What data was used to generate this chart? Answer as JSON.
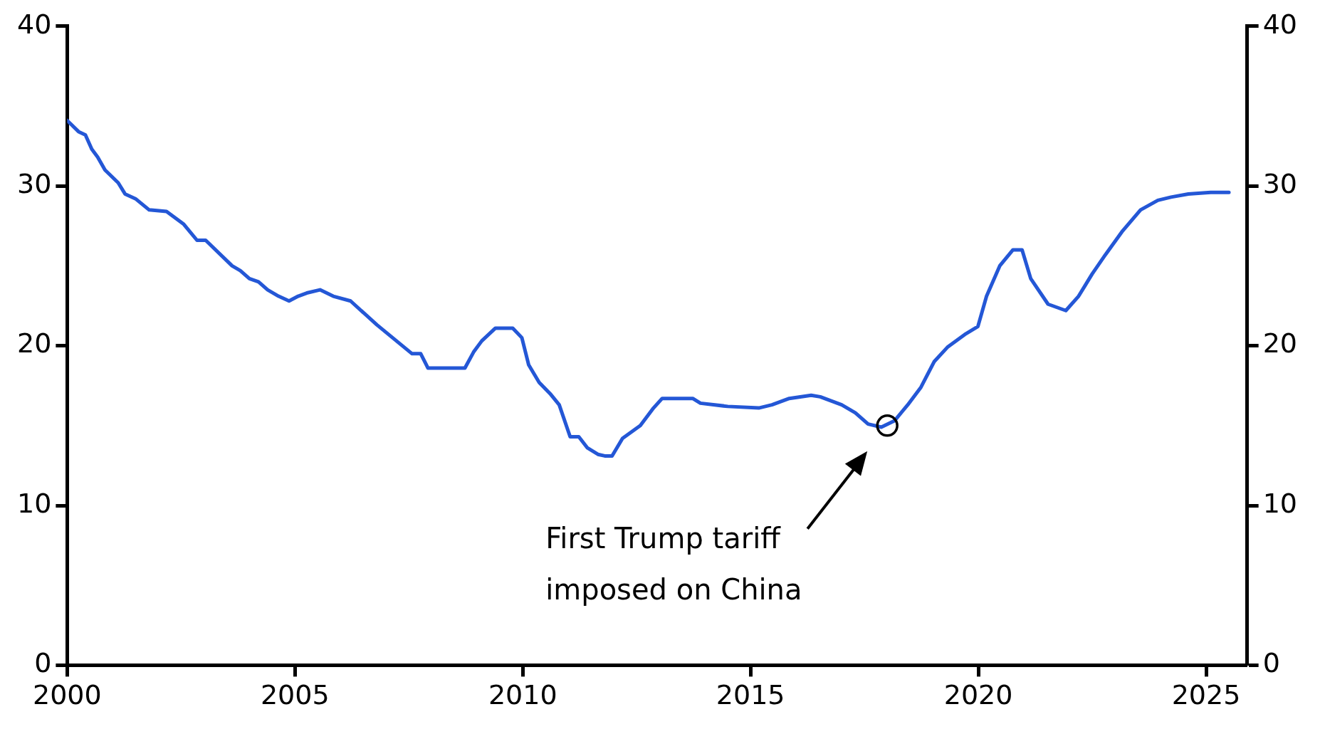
{
  "chart_data": {
    "type": "line",
    "x": [
      2000,
      2000.25,
      2000.4,
      2000.54,
      2000.67,
      2000.83,
      2001.12,
      2001.27,
      2001.5,
      2001.8,
      2002.18,
      2002.56,
      2002.85,
      2003.04,
      2003.62,
      2003.8,
      2004.0,
      2004.2,
      2004.4,
      2004.64,
      2004.87,
      2005.07,
      2005.26,
      2005.55,
      2005.84,
      2006.22,
      2006.8,
      2007.57,
      2007.76,
      2007.92,
      2008.73,
      2008.92,
      2009.1,
      2009.4,
      2009.78,
      2009.98,
      2010.13,
      2010.36,
      2010.6,
      2010.8,
      2011.04,
      2011.23,
      2011.42,
      2011.65,
      2011.8,
      2011.96,
      2012.19,
      2012.58,
      2012.87,
      2013.06,
      2013.73,
      2013.9,
      2014.5,
      2015.18,
      2015.47,
      2015.85,
      2016.33,
      2016.53,
      2017.0,
      2017.3,
      2017.58,
      2017.87,
      2018.16,
      2018.45,
      2018.74,
      2019.03,
      2019.32,
      2019.7,
      2019.99,
      2020.18,
      2020.47,
      2020.76,
      2020.96,
      2021.15,
      2021.53,
      2021.92,
      2022.2,
      2022.5,
      2022.79,
      2023.17,
      2023.56,
      2023.94,
      2024.23,
      2024.61,
      2025.1,
      2025.5
    ],
    "series": [
      {
        "color": "#2457d6",
        "values": [
          34.1,
          33.4,
          33.2,
          32.3,
          31.8,
          31.0,
          30.2,
          29.5,
          29.2,
          28.5,
          28.4,
          27.6,
          26.6,
          26.6,
          25.0,
          24.7,
          24.2,
          24.0,
          23.5,
          23.1,
          22.8,
          23.1,
          23.3,
          23.5,
          23.1,
          22.8,
          21.3,
          19.5,
          19.5,
          18.6,
          18.6,
          19.6,
          20.3,
          21.1,
          21.1,
          20.5,
          18.8,
          17.7,
          17.0,
          16.3,
          14.3,
          14.3,
          13.6,
          13.2,
          13.1,
          13.1,
          14.2,
          15.0,
          16.1,
          16.7,
          16.7,
          16.4,
          16.2,
          16.1,
          16.3,
          16.7,
          16.9,
          16.8,
          16.3,
          15.8,
          15.1,
          14.9,
          15.3,
          16.3,
          17.4,
          19.0,
          19.9,
          20.7,
          21.2,
          23.1,
          25.0,
          26.0,
          26.0,
          24.2,
          22.6,
          22.2,
          23.1,
          24.5,
          25.7,
          27.2,
          28.5,
          29.1,
          29.3,
          29.5,
          29.6,
          29.6
        ]
      }
    ],
    "xlim": [
      2000,
      2025.9
    ],
    "xticks": [
      2000,
      2005,
      2010,
      2015,
      2020,
      2025
    ],
    "ylim": [
      0,
      40
    ],
    "yticks": [
      0,
      10,
      20,
      30,
      40
    ],
    "y2lim": [
      0,
      40
    ],
    "y2ticks": [
      0,
      10,
      20,
      30,
      40
    ],
    "grid": false,
    "legend": false,
    "marker": "none",
    "line_style": "solid",
    "annotations": [
      "First Trump tariff\nimposed on China"
    ]
  }
}
